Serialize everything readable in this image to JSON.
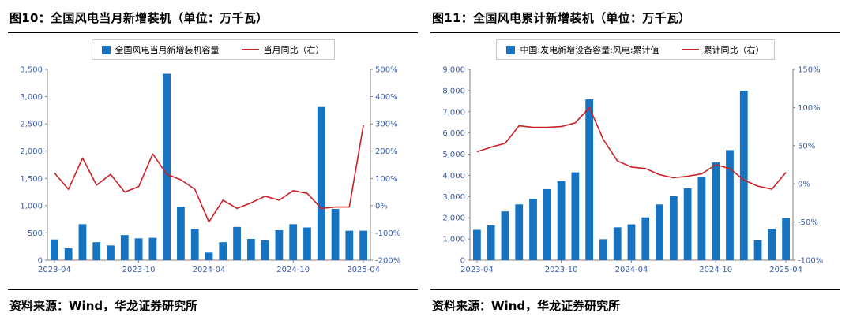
{
  "page": {
    "background": "#ffffff"
  },
  "chart_data": [
    {
      "id": "fig10",
      "type": "bar",
      "combo": "bar+line",
      "title": "图10：全国风电当月新增装机（单位：万千瓦）",
      "source": "资料来源：Wind，华龙证券研究所",
      "axis_label_color": "#3a5da9",
      "legend_position": "top-center",
      "grid": false,
      "categories": [
        "2023-04",
        "2023-05",
        "2023-06",
        "2023-07",
        "2023-08",
        "2023-09",
        "2023-10",
        "2023-11",
        "2023-12",
        "2024-02",
        "2024-03",
        "2024-04",
        "2024-05",
        "2024-06",
        "2024-07",
        "2024-08",
        "2024-09",
        "2024-10",
        "2024-11",
        "2024-12",
        "2025-02",
        "2025-03",
        "2025-04"
      ],
      "x_tick_labels": [
        "2023-04",
        "2023-10",
        "2024-04",
        "2024-10",
        "2025-04"
      ],
      "left_axis": {
        "min": 0,
        "max": 3500,
        "step": 500
      },
      "right_axis": {
        "min": -200,
        "max": 500,
        "step": 100,
        "unit": "%"
      },
      "series": [
        {
          "name": "全国风电当月新增装机容量",
          "type": "bar",
          "axis": "left",
          "color": "#1673c1",
          "values": [
            380,
            220,
            660,
            330,
            270,
            460,
            400,
            410,
            3420,
            980,
            570,
            140,
            330,
            610,
            390,
            370,
            550,
            660,
            600,
            2810,
            940,
            540,
            540
          ]
        },
        {
          "name": "当月同比（右）",
          "type": "line",
          "axis": "right",
          "color": "#cb2026",
          "values": [
            120,
            60,
            175,
            75,
            115,
            50,
            70,
            190,
            115,
            95,
            60,
            -60,
            20,
            -10,
            10,
            35,
            20,
            55,
            45,
            -10,
            -5,
            -5,
            295
          ]
        }
      ]
    },
    {
      "id": "fig11",
      "type": "bar",
      "combo": "bar+line",
      "title": "图11：全国风电累计新增装机（单位：万千瓦）",
      "source": "资料来源：Wind，华龙证券研究所",
      "axis_label_color": "#3a5da9",
      "legend_position": "top-center",
      "grid": false,
      "categories": [
        "2023-04",
        "2023-05",
        "2023-06",
        "2023-07",
        "2023-08",
        "2023-09",
        "2023-10",
        "2023-11",
        "2023-12",
        "2024-02",
        "2024-03",
        "2024-04",
        "2024-05",
        "2024-06",
        "2024-07",
        "2024-08",
        "2024-09",
        "2024-10",
        "2024-11",
        "2024-12",
        "2025-02",
        "2025-03",
        "2025-04"
      ],
      "x_tick_labels": [
        "2023-04",
        "2023-10",
        "2024-04",
        "2024-10",
        "2025-04"
      ],
      "left_axis": {
        "min": 0,
        "max": 9000,
        "step": 1000
      },
      "right_axis": {
        "min": -100,
        "max": 150,
        "step": 50,
        "unit": "%"
      },
      "series": [
        {
          "name": "中国:发电新增设备容量:风电:累计值",
          "type": "bar",
          "axis": "left",
          "color": "#1673c1",
          "values": [
            1430,
            1640,
            2300,
            2630,
            2890,
            3350,
            3730,
            4140,
            7590,
            990,
            1550,
            1690,
            2020,
            2630,
            3020,
            3390,
            3940,
            4610,
            5190,
            7990,
            950,
            1480,
            1990
          ]
        },
        {
          "name": "累计同比（右）",
          "type": "line",
          "axis": "right",
          "color": "#cb2026",
          "values": [
            42,
            48,
            53,
            76,
            74,
            74,
            75,
            80,
            100,
            58,
            30,
            22,
            20,
            12,
            8,
            10,
            13,
            25,
            20,
            5,
            -3,
            -7,
            15
          ]
        }
      ]
    }
  ]
}
